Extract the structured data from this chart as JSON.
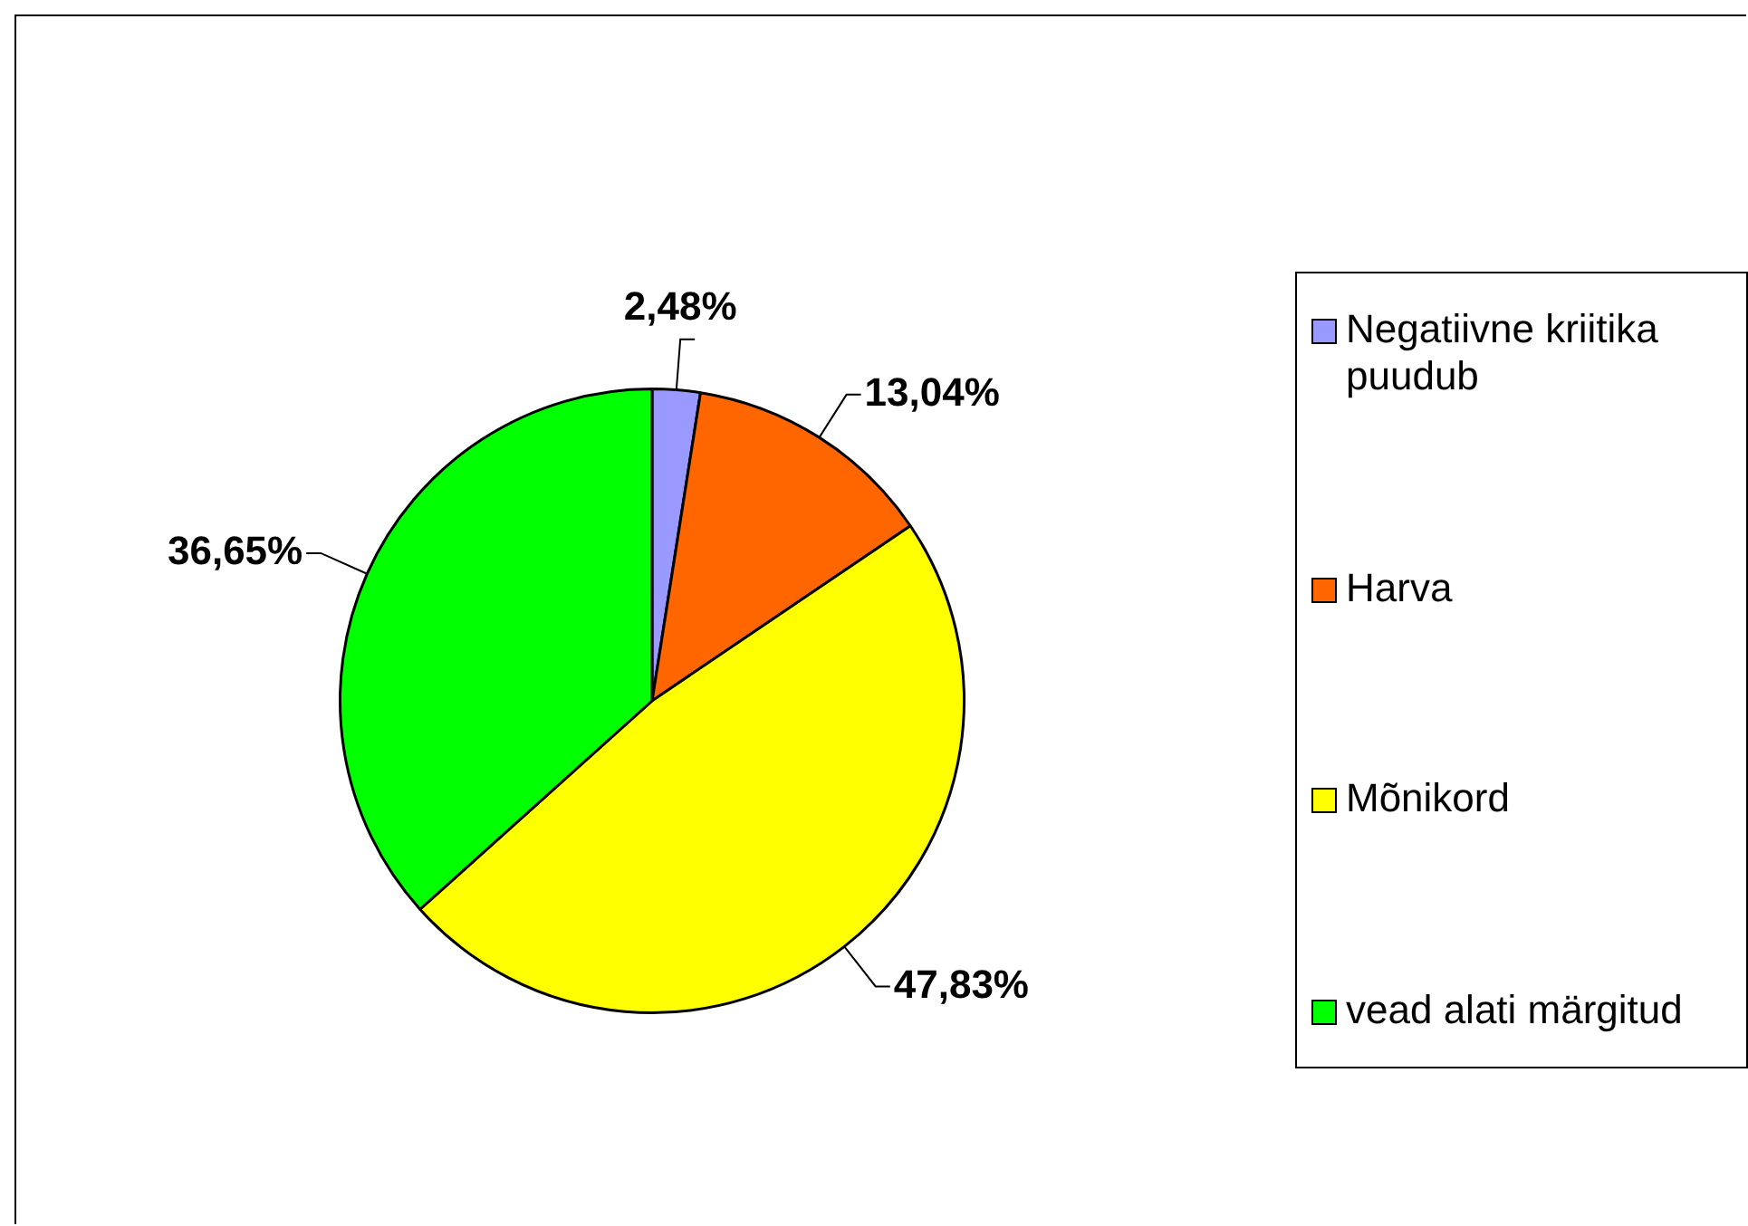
{
  "chart_data": {
    "type": "pie",
    "categories": [
      "Negatiivne kriitika puudub",
      "Harva",
      "Mõnikord",
      "vead alati märgitud"
    ],
    "values": [
      2.48,
      13.04,
      47.83,
      36.65
    ],
    "colors": [
      "#9999ff",
      "#ff6600",
      "#ffff00",
      "#00ff00"
    ],
    "value_labels": [
      "2,48%",
      "13,04%",
      "47,83%",
      "36,65%"
    ],
    "legend": "right"
  }
}
